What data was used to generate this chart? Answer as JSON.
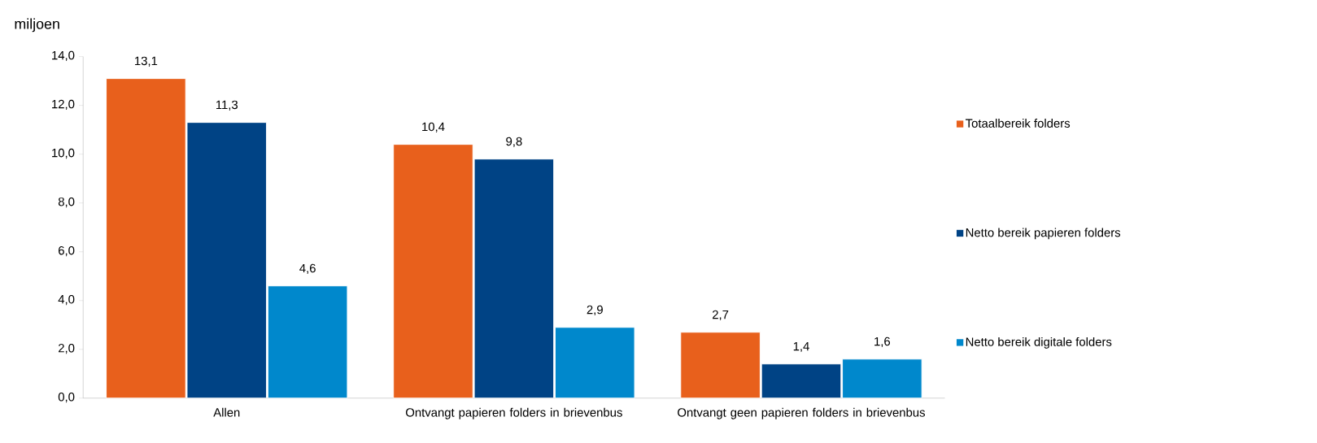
{
  "chart_data": {
    "type": "bar",
    "ylabel": "miljoen",
    "categories": [
      "Allen",
      "Ontvangt papieren folders in brievenbus",
      "Ontvangt geen papieren folders in brievenbus"
    ],
    "series": [
      {
        "name": "Totaalbereik folders",
        "color": "#e8601c",
        "values": [
          13.1,
          10.4,
          2.7
        ],
        "value_labels": [
          "13,1",
          "10,4",
          "2,7"
        ]
      },
      {
        "name": "Netto bereik papieren folders",
        "color": "#004385",
        "values": [
          11.3,
          9.8,
          1.4
        ],
        "value_labels": [
          "11,3",
          "9,8",
          "1,4"
        ]
      },
      {
        "name": "Netto bereik digitale folders",
        "color": "#0088cc",
        "values": [
          4.6,
          2.9,
          1.6
        ],
        "value_labels": [
          "4,6",
          "2,9",
          "1,6"
        ]
      }
    ],
    "ylim": [
      0,
      14
    ],
    "yticks": [
      {
        "value": 0,
        "label": "0,0"
      },
      {
        "value": 2,
        "label": "2,0"
      },
      {
        "value": 4,
        "label": "4,0"
      },
      {
        "value": 6,
        "label": "6,0"
      },
      {
        "value": 8,
        "label": "8,0"
      },
      {
        "value": 10,
        "label": "10,0"
      },
      {
        "value": 12,
        "label": "12,0"
      },
      {
        "value": 14,
        "label": "14,0"
      }
    ],
    "legend": "right",
    "grid": false
  }
}
